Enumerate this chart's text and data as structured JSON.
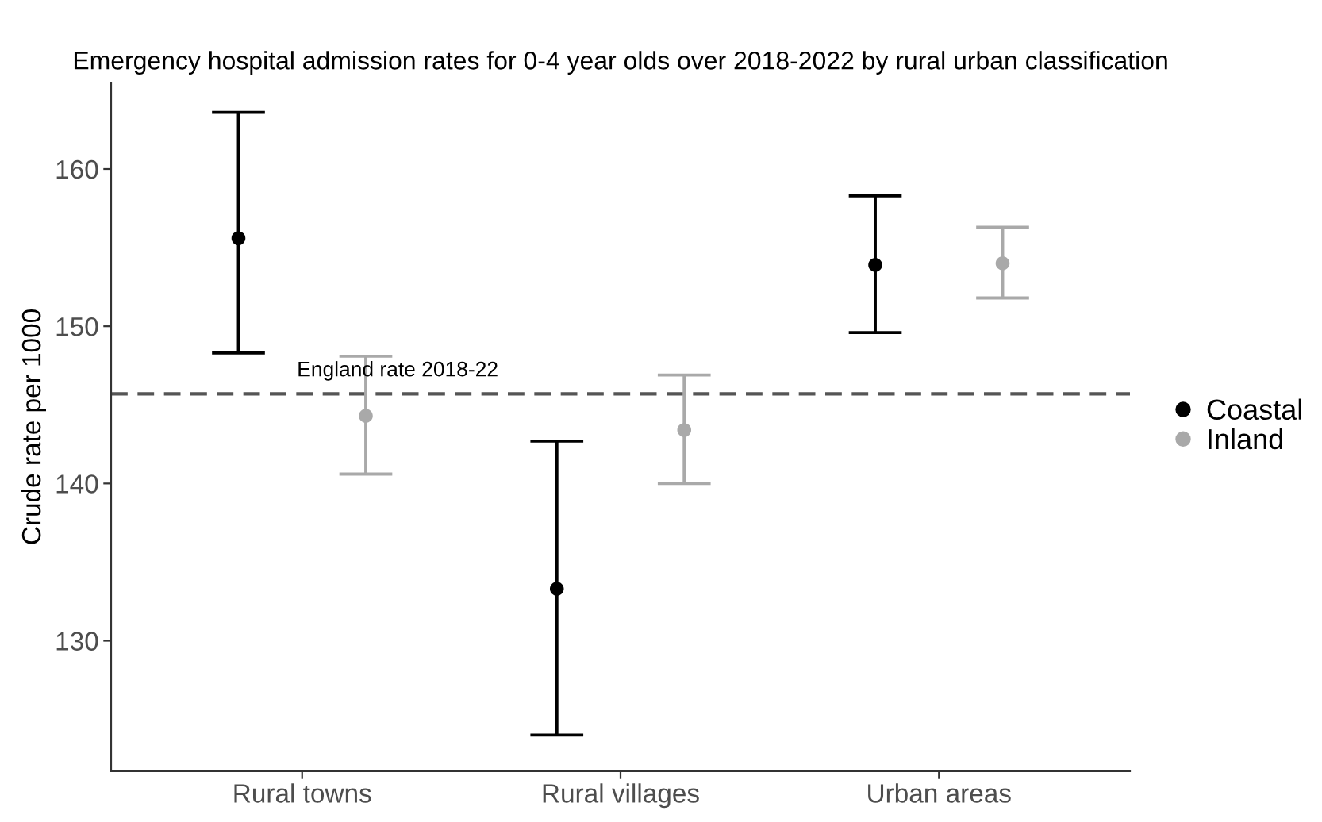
{
  "chart_data": {
    "type": "scatter",
    "title": "Emergency hospital admission rates for 0-4 year olds over 2018-2022 by rural urban classification",
    "ylabel": "Crude rate per 1000",
    "categories": [
      "Rural towns",
      "Rural villages",
      "Urban areas"
    ],
    "series": [
      {
        "name": "Coastal",
        "color": "#000000",
        "values": [
          155.6,
          133.3,
          153.9
        ],
        "errors": [
          [
            148.3,
            163.6
          ],
          [
            124.0,
            142.7
          ],
          [
            149.6,
            158.3
          ]
        ]
      },
      {
        "name": "Inland",
        "color": "#a9a9a9",
        "values": [
          144.3,
          143.4,
          154.0
        ],
        "errors": [
          [
            140.6,
            148.1
          ],
          [
            140.0,
            146.9
          ],
          [
            151.8,
            156.3
          ]
        ]
      }
    ],
    "ylim": [
      121.7,
      165.5
    ],
    "yticks": [
      130,
      140,
      150,
      160
    ],
    "ref_lines": [
      {
        "axis": "y",
        "value": 145.7,
        "label": "England rate 2018-22",
        "color": "#555555",
        "line_style": "dashed"
      }
    ],
    "grid": false,
    "legend": "right",
    "marker": "circle"
  }
}
